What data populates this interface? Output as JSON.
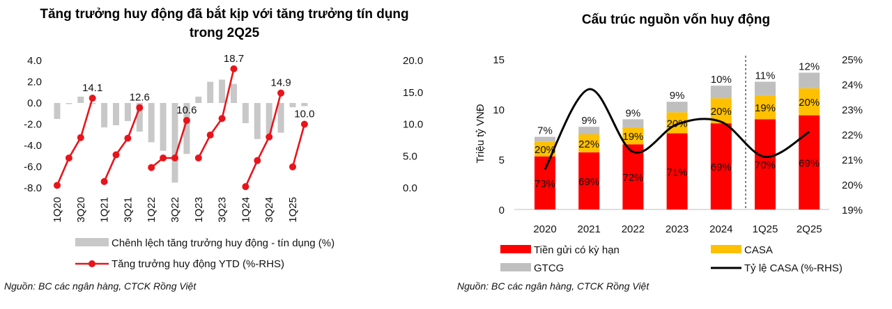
{
  "chart_data": [
    {
      "type": "bar+line",
      "title_lines": [
        "Tăng trưởng huy động đã bắt kịp với tăng trưởng tín dụng",
        "trong 2Q25"
      ],
      "x": [
        "1Q20",
        "2Q20",
        "3Q20",
        "4Q20",
        "1Q21",
        "2Q21",
        "3Q21",
        "4Q21",
        "1Q22",
        "2Q22",
        "3Q22",
        "4Q22",
        "1Q23",
        "2Q23",
        "3Q23",
        "4Q23",
        "1Q24",
        "2Q24",
        "3Q24",
        "4Q24",
        "1Q25",
        "2Q25"
      ],
      "x_tick_labels": [
        "1Q20",
        "3Q20",
        "1Q21",
        "3Q21",
        "1Q22",
        "3Q22",
        "1Q23",
        "3Q23",
        "1Q24",
        "3Q24",
        "1Q25"
      ],
      "ylim_left": [
        -8,
        4
      ],
      "yticks_left": [
        "4.0",
        "2.0",
        "0.0",
        "-2.0",
        "-4.0",
        "-6.0",
        "-8.0"
      ],
      "ylim_right": [
        0,
        20
      ],
      "yticks_right": [
        "20.0",
        "15.0",
        "10.0",
        "5.0",
        "0.0"
      ],
      "series": [
        {
          "name": "Chênh lệch tăng trưởng huy động - tín dụng (%)",
          "type": "bar",
          "axis": "left",
          "color": "#c8c8c8",
          "values": [
            -1.5,
            -0.1,
            0.6,
            -0.1,
            -2.3,
            -2.1,
            -1.7,
            -2.7,
            -3.7,
            -4.5,
            -7.5,
            -4.8,
            0.6,
            2.0,
            2.2,
            1.8,
            -1.9,
            -3.4,
            -2.9,
            -2.8,
            -0.4,
            -0.3
          ]
        },
        {
          "name": "Tăng trưởng huy động YTD (%-RHS)",
          "type": "line",
          "axis": "right",
          "color": "#e8141b",
          "segments": [
            {
              "start": 0,
              "values": [
                0.4,
                4.7,
                7.9,
                14.1
              ]
            },
            {
              "start": 4,
              "values": [
                1.0,
                5.2,
                7.8,
                12.6
              ]
            },
            {
              "start": 8,
              "values": [
                3.2,
                4.7,
                4.7,
                10.6
              ]
            },
            {
              "start": 12,
              "values": [
                4.7,
                8.3,
                10.9,
                18.7
              ]
            },
            {
              "start": 16,
              "values": [
                0.2,
                4.3,
                8.0,
                14.9
              ]
            },
            {
              "start": 20,
              "values": [
                3.3,
                10.0
              ]
            }
          ],
          "labels": [
            {
              "i": 3,
              "text": "14.1"
            },
            {
              "i": 7,
              "text": "12.6"
            },
            {
              "i": 11,
              "text": "10.6"
            },
            {
              "i": 15,
              "text": "18.7"
            },
            {
              "i": 19,
              "text": "14.9"
            },
            {
              "i": 21,
              "text": "10.0"
            }
          ]
        }
      ],
      "legend": [
        "Chênh lệch tăng trưởng huy động - tín dụng (%)",
        "Tăng trưởng huy động YTD (%-RHS)"
      ],
      "source": "Nguồn: BC các ngân hàng, CTCK Rồng Việt"
    },
    {
      "type": "stacked-bar+line",
      "title": "Cấu trúc nguồn vốn huy động",
      "ylabel": "Triệu tỷ VNĐ",
      "categories": [
        "2020",
        "2021",
        "2022",
        "2023",
        "2024",
        "1Q25",
        "2Q25"
      ],
      "ylim_left": [
        0,
        15
      ],
      "yticks_left": [
        "15",
        "10",
        "5",
        "0"
      ],
      "ylim_right": [
        19,
        25
      ],
      "yticks_right": [
        "25%",
        "24%",
        "23%",
        "22%",
        "21%",
        "20%",
        "19%"
      ],
      "series": [
        {
          "name": "Tiền gửi có kỳ hạn",
          "color": "#ff0000",
          "values": [
            5.3,
            5.7,
            6.5,
            7.6,
            8.6,
            9.0,
            9.4
          ],
          "labels": [
            "73%",
            "69%",
            "72%",
            "71%",
            "69%",
            "70%",
            "69%"
          ]
        },
        {
          "name": "CASA",
          "color": "#ffc000",
          "values": [
            1.45,
            1.8,
            1.7,
            2.1,
            2.5,
            2.4,
            2.7
          ],
          "labels": [
            "20%",
            "22%",
            "19%",
            "20%",
            "20%",
            "19%",
            "20%"
          ]
        },
        {
          "name": "GTCG",
          "color": "#bfbfbf",
          "values": [
            0.5,
            0.75,
            0.8,
            1.05,
            1.25,
            1.35,
            1.55
          ],
          "labels": [
            "7%",
            "9%",
            "9%",
            "9%",
            "10%",
            "11%",
            "12%"
          ]
        },
        {
          "name": "Tỷ lệ CASA (%-RHS)",
          "type": "line",
          "axis": "right",
          "color": "#000000",
          "values": [
            20.6,
            23.8,
            21.3,
            22.4,
            22.5,
            21.1,
            22.1
          ]
        }
      ],
      "legend": [
        "Tiền gửi có kỳ hạn",
        "CASA",
        "GTCG",
        "Tỷ lệ CASA (%-RHS)"
      ],
      "source": "Nguồn: BC các ngân hàng, CTCK Rồng Việt"
    }
  ]
}
